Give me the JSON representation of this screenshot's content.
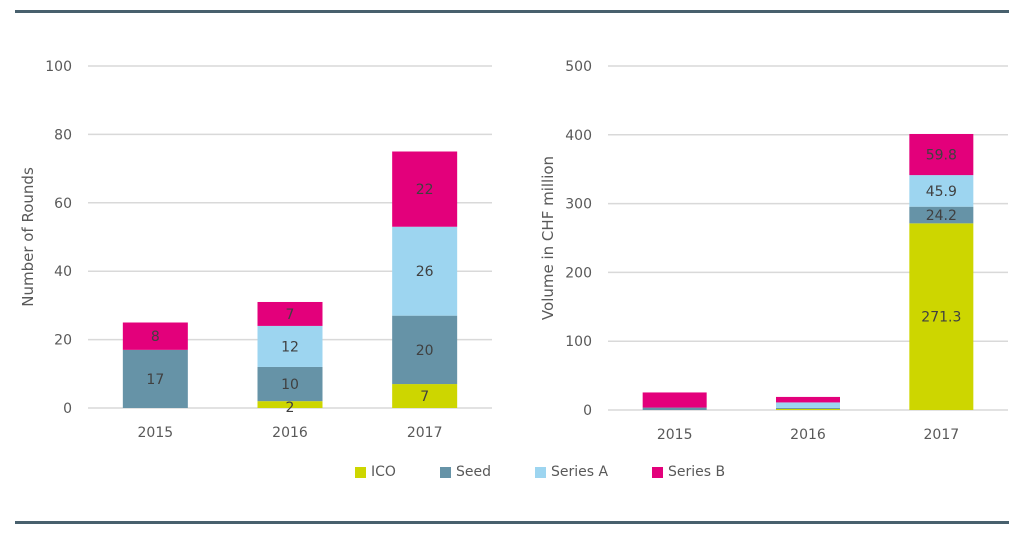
{
  "colors": {
    "ICO": "#cdd600",
    "Seed": "#6693a7",
    "Series A": "#9dd5f0",
    "Series B": "#e3007b",
    "grid": "#d9d9d9",
    "rule": "#48606d"
  },
  "legend": [
    {
      "label": "ICO",
      "color": "#cdd600"
    },
    {
      "label": "Seed",
      "color": "#6693a7"
    },
    {
      "label": "Series A",
      "color": "#9dd5f0"
    },
    {
      "label": "Series B",
      "color": "#e3007b"
    }
  ],
  "chart_data": [
    {
      "type": "bar",
      "stacked": true,
      "title": "",
      "xlabel": "",
      "ylabel": "Number of Rounds",
      "ylim": [
        0,
        100
      ],
      "yticks": [
        0,
        20,
        40,
        60,
        80,
        100
      ],
      "grid": true,
      "legend": "bottom",
      "categories": [
        "2015",
        "2016",
        "2017"
      ],
      "series": [
        {
          "name": "ICO",
          "values": [
            0,
            2,
            7
          ],
          "labels": [
            "",
            "2",
            "7"
          ]
        },
        {
          "name": "Seed",
          "values": [
            17,
            10,
            20
          ],
          "labels": [
            "17",
            "10",
            "20"
          ]
        },
        {
          "name": "Series A",
          "values": [
            0,
            12,
            26
          ],
          "labels": [
            "",
            "12",
            "26"
          ]
        },
        {
          "name": "Series B",
          "values": [
            8,
            7,
            22
          ],
          "labels": [
            "8",
            "7",
            "22"
          ]
        }
      ]
    },
    {
      "type": "bar",
      "stacked": true,
      "title": "",
      "xlabel": "",
      "ylabel": "Volume in CHF million",
      "ylim": [
        0,
        500
      ],
      "yticks": [
        0,
        100,
        200,
        300,
        400,
        500
      ],
      "grid": true,
      "legend": "bottom",
      "categories": [
        "2015",
        "2016",
        "2017"
      ],
      "series": [
        {
          "name": "ICO",
          "values": [
            0,
            1.5,
            271.3
          ],
          "labels": [
            "",
            "",
            "271.3"
          ]
        },
        {
          "name": "Seed",
          "values": [
            3.5,
            1.5,
            24.2
          ],
          "labels": [
            "",
            "",
            "24.2"
          ]
        },
        {
          "name": "Series A",
          "values": [
            0,
            8,
            45.9
          ],
          "labels": [
            "",
            "",
            "45.9"
          ]
        },
        {
          "name": "Series B",
          "values": [
            22,
            8,
            59.8
          ],
          "labels": [
            "",
            "",
            "59.8"
          ]
        }
      ]
    }
  ]
}
